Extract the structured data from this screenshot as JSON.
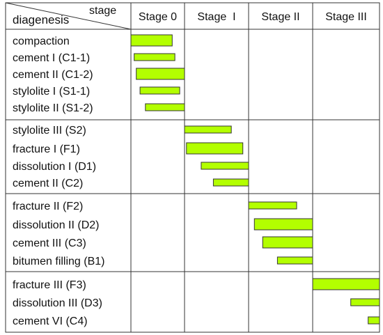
{
  "chart_data": {
    "type": "gantt-table",
    "corner": {
      "column_header": "stage",
      "row_header": "diagenesis"
    },
    "stages": [
      "Stage 0",
      "Stage  I",
      "Stage II",
      "Stage III"
    ],
    "bar_color": "#b3ff00",
    "groups": [
      {
        "rows": [
          {
            "label": "compaction",
            "start": 0.0,
            "end": 0.77,
            "thick": true
          },
          {
            "label": "cement I (C1-1)",
            "start": 0.06,
            "end": 0.82,
            "thick": false
          },
          {
            "label": "cement II (C1-2)",
            "start": 0.1,
            "end": 1.0,
            "thick": true
          },
          {
            "label": "stylolite I (S1-1)",
            "start": 0.17,
            "end": 0.91,
            "thick": false
          },
          {
            "label": "stylolite II (S1-2)",
            "start": 0.27,
            "end": 1.0,
            "thick": false
          }
        ]
      },
      {
        "rows": [
          {
            "label": "stylolite III (S2)",
            "start": 1.0,
            "end": 1.73,
            "thick": false
          },
          {
            "label": "fracture I (F1)",
            "start": 1.03,
            "end": 1.91,
            "thick": true
          },
          {
            "label": "dissolution I (D1)",
            "start": 1.26,
            "end": 2.0,
            "thick": false
          },
          {
            "label": "cement II (C2)",
            "start": 1.45,
            "end": 2.0,
            "thick": false
          }
        ]
      },
      {
        "rows": [
          {
            "label": "fracture II (F2)",
            "start": 2.0,
            "end": 2.75,
            "thick": false
          },
          {
            "label": "dissolution II (D2)",
            "start": 2.09,
            "end": 3.0,
            "thick": true
          },
          {
            "label": "cement III (C3)",
            "start": 2.22,
            "end": 3.0,
            "thick": true
          },
          {
            "label": "bitumen filling (B1)",
            "start": 2.45,
            "end": 3.0,
            "thick": false
          }
        ]
      },
      {
        "rows": [
          {
            "label": "fracture III (F3)",
            "start": 3.0,
            "end": 4.0,
            "thick": true
          },
          {
            "label": "dissolution III (D3)",
            "start": 3.57,
            "end": 4.0,
            "thick": false
          },
          {
            "label": "cement VI (C4)",
            "start": 3.83,
            "end": 4.0,
            "thick": false
          }
        ]
      }
    ]
  }
}
